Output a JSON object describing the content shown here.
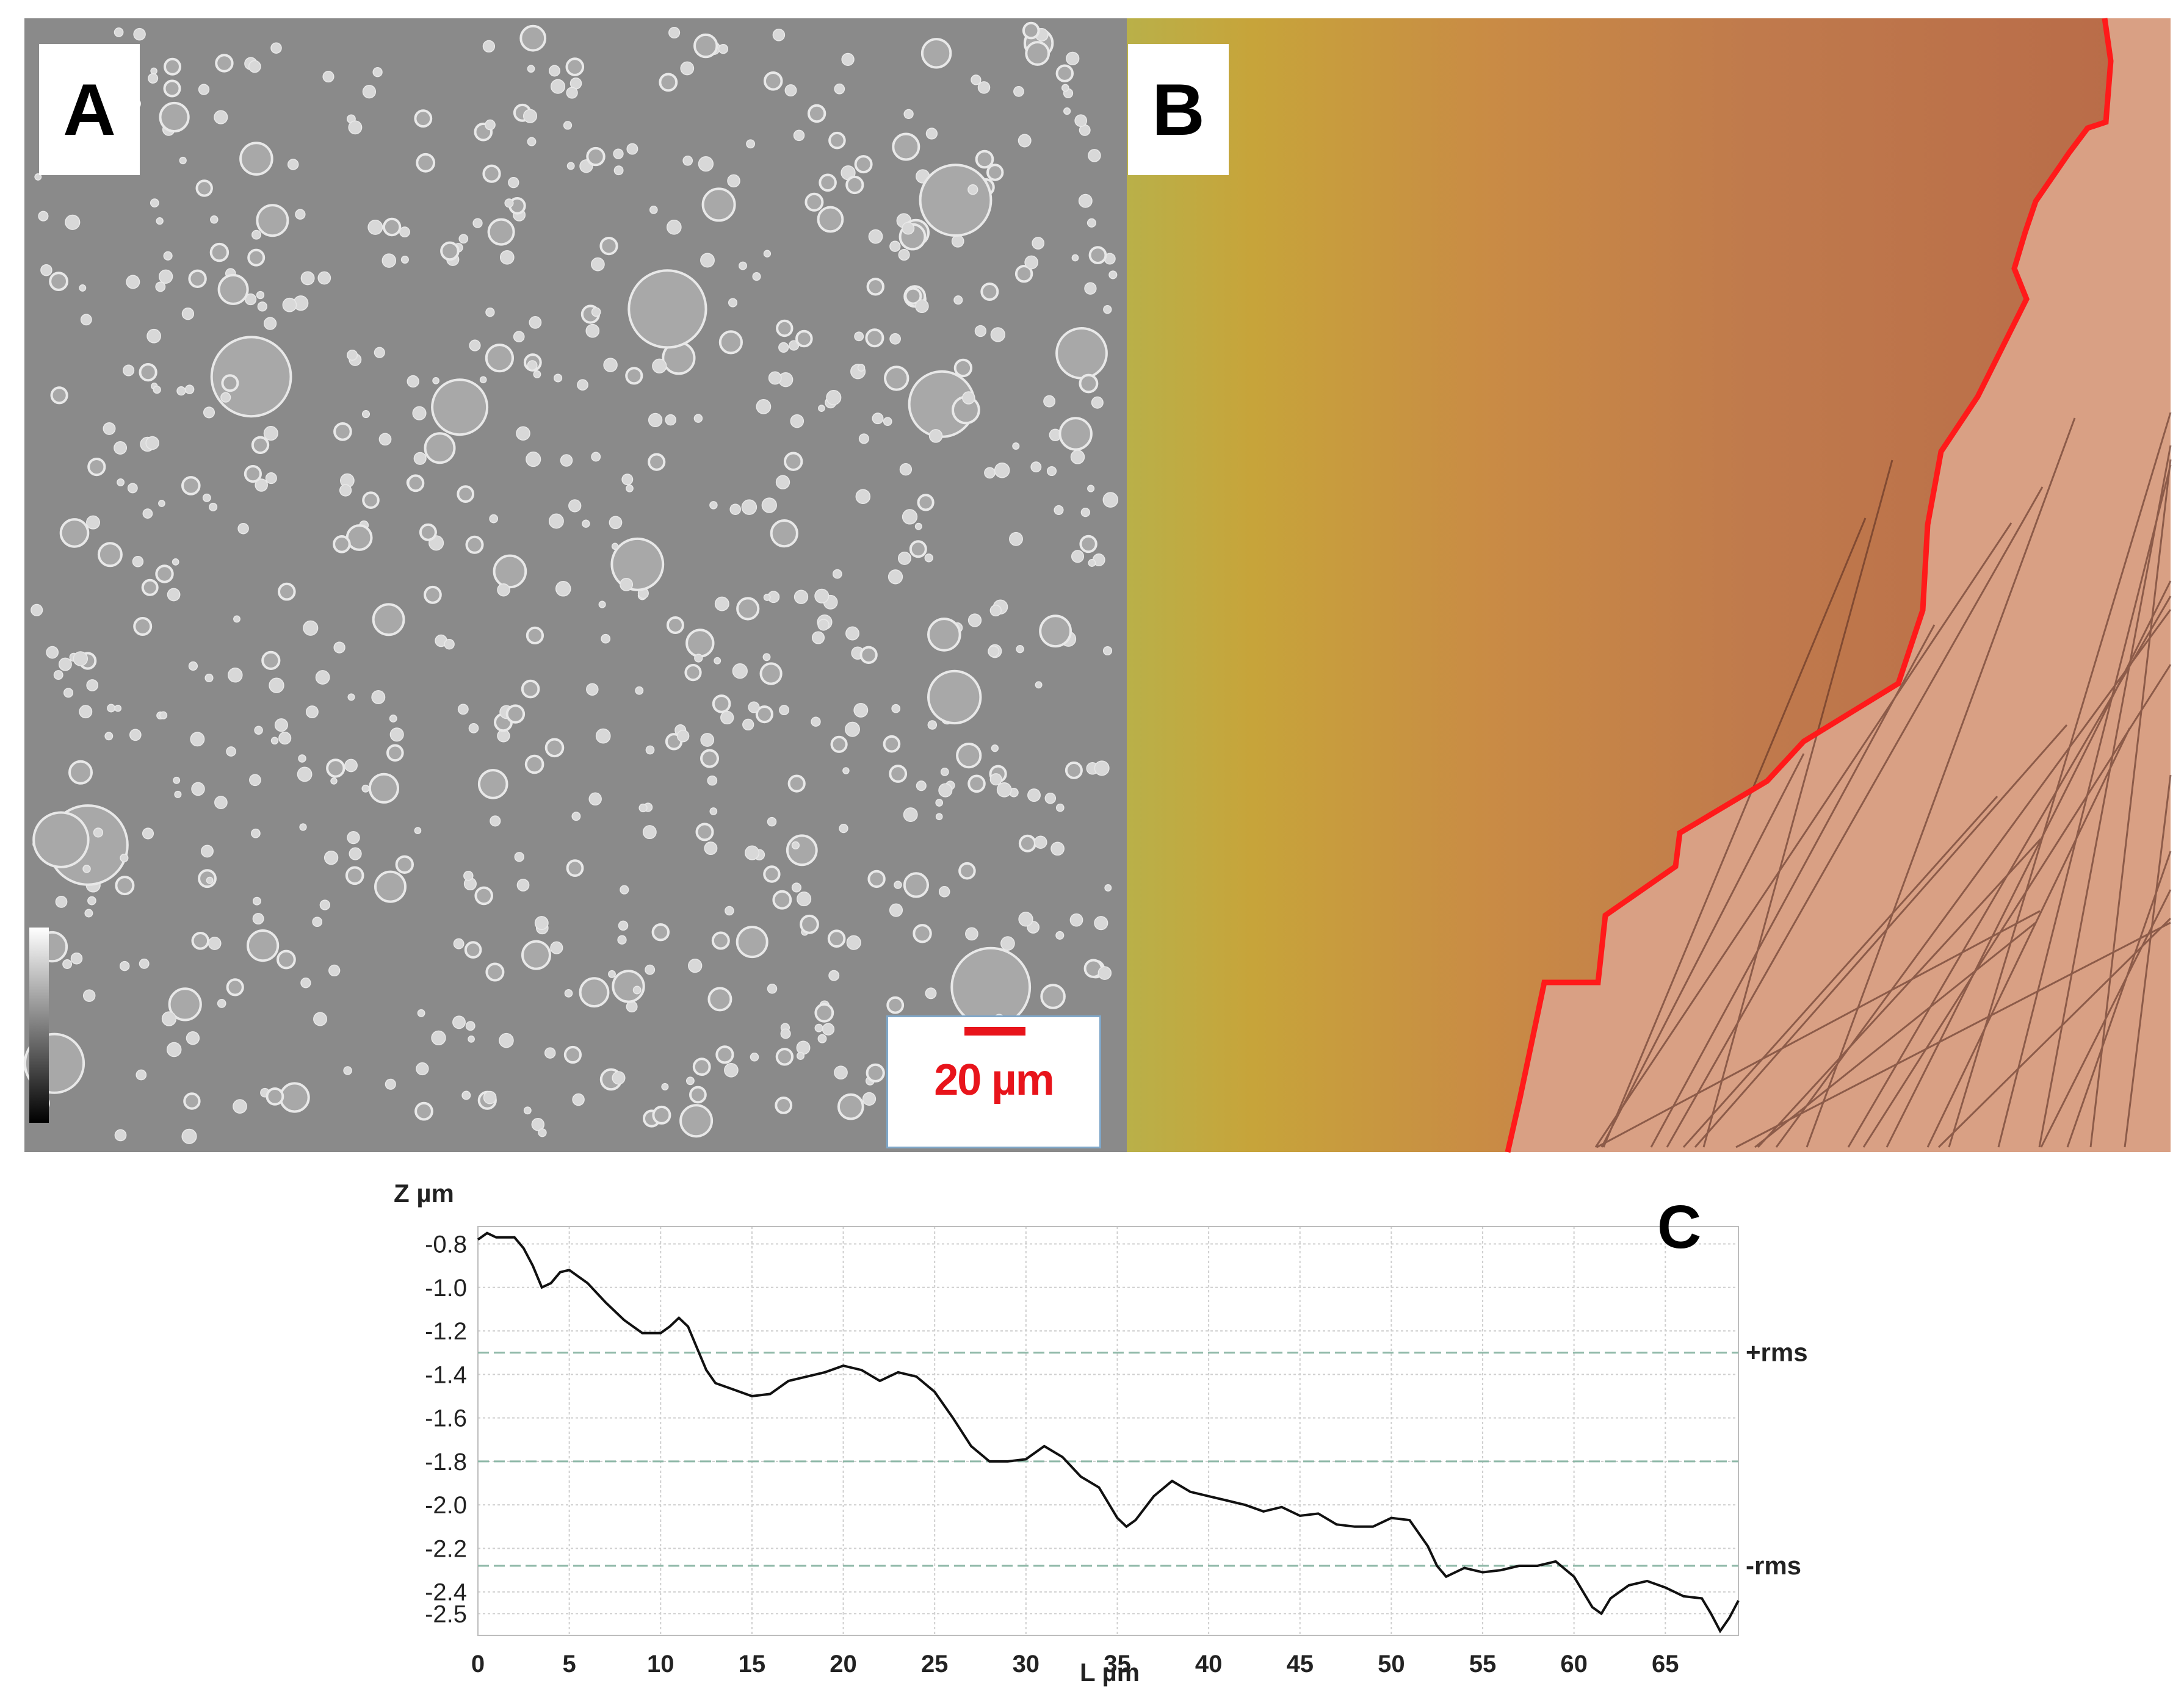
{
  "panels": {
    "a": {
      "label": "A"
    },
    "b": {
      "label": "B"
    },
    "scale_bar_label": "20 µm"
  },
  "colors": {
    "scale_red": "#e8141b",
    "boundary_red": "#ff1a1a",
    "sem_gray": "#8a8a8a",
    "film_yellow": "#c7a43a",
    "substrate_pink": "#d9a084",
    "reference_line": "#8fb8a8"
  },
  "chart_data": {
    "type": "line",
    "panel_label": "C",
    "xlabel": "L µm",
    "ylabel": "Z µm",
    "xlim": [
      0,
      69
    ],
    "ylim": [
      -2.6,
      -0.72
    ],
    "x_ticks": [
      0,
      5,
      10,
      15,
      20,
      25,
      30,
      35,
      40,
      45,
      50,
      55,
      60,
      65
    ],
    "y_ticks": [
      {
        "value": -0.8,
        "label": "-0.8"
      },
      {
        "value": -1.0,
        "label": "-1.0"
      },
      {
        "value": -1.2,
        "label": "-1.2"
      },
      {
        "value": -1.4,
        "label": "-1.4"
      },
      {
        "value": -1.6,
        "label": "-1.6"
      },
      {
        "value": -1.8,
        "label": "-1.8"
      },
      {
        "value": -2.0,
        "label": "-2.0"
      },
      {
        "value": -2.2,
        "label": "-2.2"
      },
      {
        "value": -2.4,
        "label": "-2.4"
      },
      {
        "value": -2.5,
        "label": "-2.5"
      }
    ],
    "grid": true,
    "reference_lines": [
      {
        "value": -1.3,
        "label": "+rms"
      },
      {
        "value": -1.8,
        "label": ""
      },
      {
        "value": -2.28,
        "label": "-rms"
      }
    ],
    "series": [
      {
        "x": [
          0,
          0.5,
          1.0,
          2.0,
          2.5,
          3.0,
          3.5,
          4.0,
          4.5,
          5.0,
          6.0,
          7.0,
          8.0,
          9.0,
          10.0,
          10.5,
          11.0,
          11.5,
          12.0,
          12.5,
          13.0,
          14.0,
          15.0,
          16.0,
          17.0,
          18.0,
          19.0,
          20.0,
          21.0,
          22.0,
          23.0,
          24.0,
          25.0,
          26.0,
          27.0,
          28.0,
          29.0,
          30.0,
          31.0,
          32.0,
          33.0,
          34.0,
          35.0,
          35.5,
          36.0,
          37.0,
          38.0,
          39.0,
          40.0,
          41.0,
          42.0,
          43.0,
          44.0,
          45.0,
          46.0,
          47.0,
          48.0,
          49.0,
          50.0,
          51.0,
          52.0,
          52.5,
          53.0,
          54.0,
          55.0,
          56.0,
          57.0,
          58.0,
          59.0,
          60.0,
          61.0,
          61.5,
          62.0,
          63.0,
          64.0,
          65.0,
          66.0,
          67.0,
          67.5,
          68.0,
          68.5,
          69.0
        ],
        "y": [
          -0.78,
          -0.75,
          -0.77,
          -0.77,
          -0.82,
          -0.9,
          -1.0,
          -0.98,
          -0.93,
          -0.92,
          -0.98,
          -1.07,
          -1.15,
          -1.21,
          -1.21,
          -1.18,
          -1.14,
          -1.18,
          -1.28,
          -1.38,
          -1.44,
          -1.47,
          -1.5,
          -1.49,
          -1.43,
          -1.41,
          -1.39,
          -1.36,
          -1.38,
          -1.43,
          -1.39,
          -1.41,
          -1.48,
          -1.6,
          -1.73,
          -1.8,
          -1.8,
          -1.79,
          -1.73,
          -1.78,
          -1.87,
          -1.92,
          -2.06,
          -2.1,
          -2.07,
          -1.96,
          -1.89,
          -1.94,
          -1.96,
          -1.98,
          -2.0,
          -2.03,
          -2.01,
          -2.05,
          -2.04,
          -2.09,
          -2.1,
          -2.1,
          -2.06,
          -2.07,
          -2.19,
          -2.28,
          -2.33,
          -2.29,
          -2.31,
          -2.3,
          -2.28,
          -2.28,
          -2.26,
          -2.33,
          -2.47,
          -2.5,
          -2.43,
          -2.37,
          -2.35,
          -2.38,
          -2.42,
          -2.43,
          -2.5,
          -2.58,
          -2.52,
          -2.44
        ]
      }
    ]
  }
}
